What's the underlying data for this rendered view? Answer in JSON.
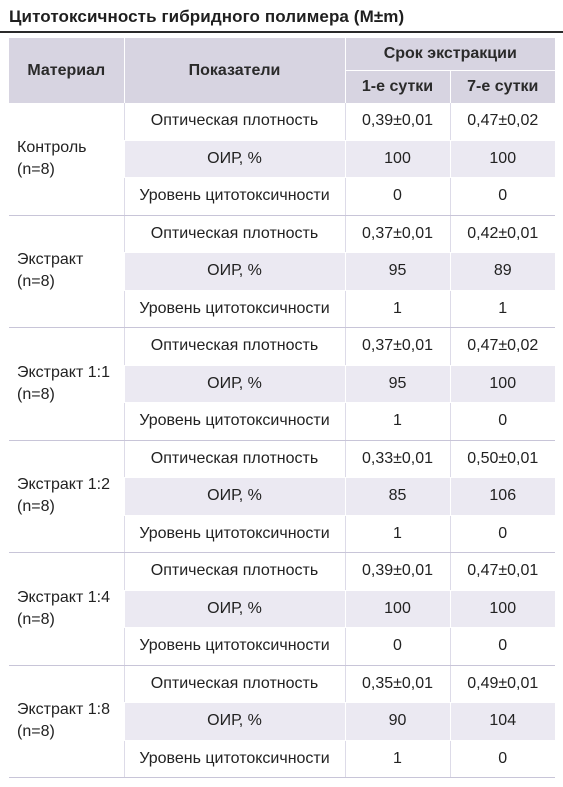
{
  "title": "Цитотоксичность гибридного полимера (M±m)",
  "header": {
    "material": "Материал",
    "indicators": "Показатели",
    "extraction_period": "Срок экстракции",
    "day1": "1-е сутки",
    "day7": "7-е сутки"
  },
  "groups": [
    {
      "name": "Контроль",
      "n": "(n=8)",
      "rows": [
        {
          "indicator": "Оптическая плотность",
          "day1": "0,39±0,01",
          "day7": "0,47±0,02"
        },
        {
          "indicator": "ОИР, %",
          "day1": "100",
          "day7": "100"
        },
        {
          "indicator": "Уровень цитотоксичности",
          "day1": "0",
          "day7": "0"
        }
      ]
    },
    {
      "name": "Экстракт",
      "n": "(n=8)",
      "rows": [
        {
          "indicator": "Оптическая плотность",
          "day1": "0,37±0,01",
          "day7": "0,42±0,01"
        },
        {
          "indicator": "ОИР, %",
          "day1": "95",
          "day7": "89"
        },
        {
          "indicator": "Уровень цитотоксичности",
          "day1": "1",
          "day7": "1"
        }
      ]
    },
    {
      "name": "Экстракт 1:1",
      "n": "(n=8)",
      "rows": [
        {
          "indicator": "Оптическая плотность",
          "day1": "0,37±0,01",
          "day7": "0,47±0,02"
        },
        {
          "indicator": "ОИР, %",
          "day1": "95",
          "day7": "100"
        },
        {
          "indicator": "Уровень цитотоксичности",
          "day1": "1",
          "day7": "0"
        }
      ]
    },
    {
      "name": "Экстракт 1:2",
      "n": "(n=8)",
      "rows": [
        {
          "indicator": "Оптическая плотность",
          "day1": "0,33±0,01",
          "day7": "0,50±0,01"
        },
        {
          "indicator": "ОИР, %",
          "day1": "85",
          "day7": "106"
        },
        {
          "indicator": "Уровень цитотоксичности",
          "day1": "1",
          "day7": "0"
        }
      ]
    },
    {
      "name": "Экстракт 1:4",
      "n": "(n=8)",
      "rows": [
        {
          "indicator": "Оптическая плотность",
          "day1": "0,39±0,01",
          "day7": "0,47±0,01"
        },
        {
          "indicator": "ОИР, %",
          "day1": "100",
          "day7": "100"
        },
        {
          "indicator": "Уровень цитотоксичности",
          "day1": "0",
          "day7": "0"
        }
      ]
    },
    {
      "name": "Экстракт 1:8",
      "n": "(n=8)",
      "rows": [
        {
          "indicator": "Оптическая плотность",
          "day1": "0,35±0,01",
          "day7": "0,49±0,01"
        },
        {
          "indicator": "ОИР, %",
          "day1": "90",
          "day7": "104"
        },
        {
          "indicator": "Уровень цитотоксичности",
          "day1": "1",
          "day7": "0"
        }
      ]
    }
  ],
  "colors": {
    "header_bg": "#d7d4e1",
    "alt_row_bg": "#ebe9f2",
    "rule": "#2a2a2a"
  }
}
